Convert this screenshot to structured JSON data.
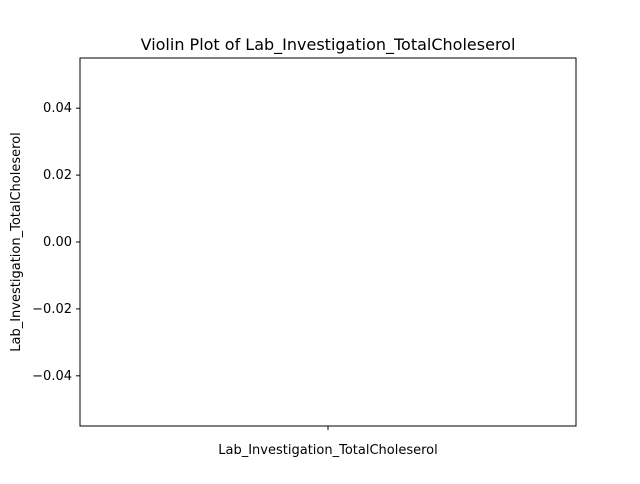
{
  "chart_data": {
    "type": "violin",
    "title": "Violin Plot of Lab_Investigation_TotalCholeserol",
    "xlabel": "",
    "ylabel": "Lab_Investigation_TotalCholeserol",
    "categories": [
      "Lab_Investigation_TotalCholeserol"
    ],
    "series": [
      {
        "values": []
      }
    ],
    "ylim": [
      -0.055,
      0.055
    ],
    "yticks": [
      {
        "value": 0.04,
        "label": "0.04"
      },
      {
        "value": 0.02,
        "label": "0.02"
      },
      {
        "value": 0.0,
        "label": "0.00"
      },
      {
        "value": -0.02,
        "label": "−0.02"
      },
      {
        "value": -0.04,
        "label": "−0.04"
      }
    ],
    "grid": false,
    "legend": "none",
    "colors": {
      "axis": "#000000",
      "background": "#ffffff"
    }
  }
}
